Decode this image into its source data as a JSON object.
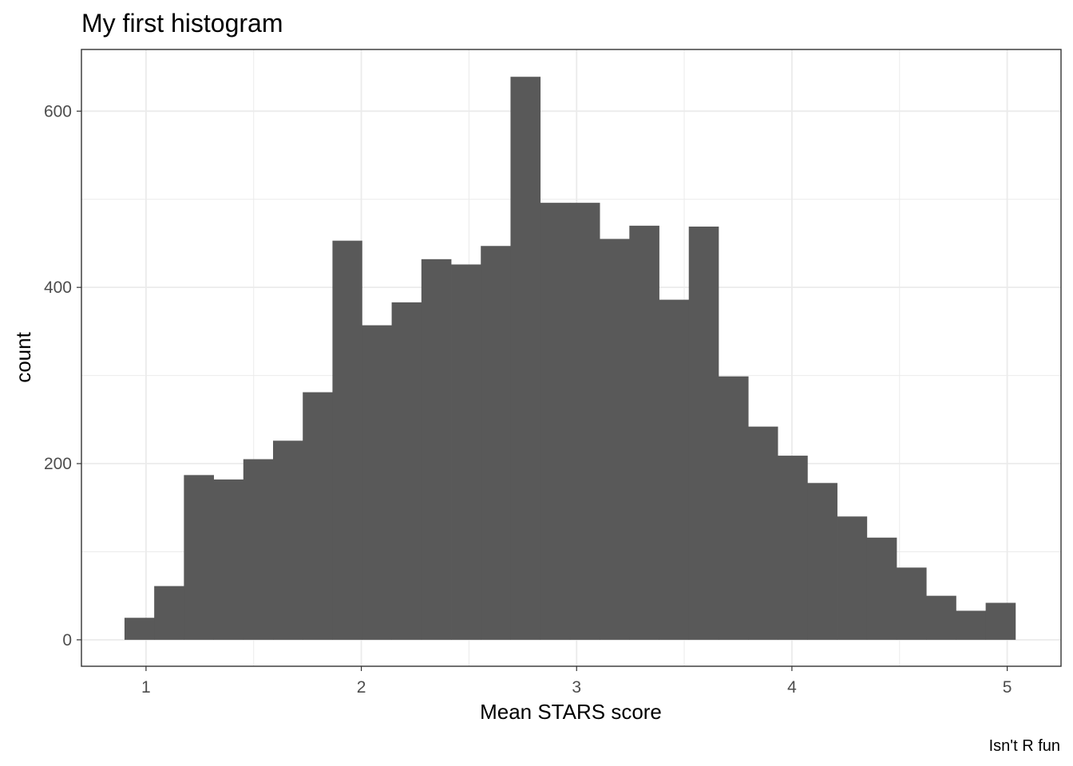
{
  "chart_data": {
    "type": "bar",
    "title": "My first histogram",
    "xlabel": "Mean STARS score",
    "ylabel": "count",
    "caption": "Isn't R fun",
    "bin_width": 0.1379,
    "bins": [
      {
        "x0": 0.9,
        "x1": 1.038,
        "count": 25
      },
      {
        "x0": 1.038,
        "x1": 1.176,
        "count": 61
      },
      {
        "x0": 1.176,
        "x1": 1.314,
        "count": 187
      },
      {
        "x0": 1.314,
        "x1": 1.452,
        "count": 182
      },
      {
        "x0": 1.452,
        "x1": 1.59,
        "count": 205
      },
      {
        "x0": 1.59,
        "x1": 1.728,
        "count": 226
      },
      {
        "x0": 1.728,
        "x1": 1.866,
        "count": 281
      },
      {
        "x0": 1.866,
        "x1": 2.003,
        "count": 453
      },
      {
        "x0": 2.003,
        "x1": 2.141,
        "count": 357
      },
      {
        "x0": 2.141,
        "x1": 2.279,
        "count": 383
      },
      {
        "x0": 2.279,
        "x1": 2.417,
        "count": 432
      },
      {
        "x0": 2.417,
        "x1": 2.555,
        "count": 426
      },
      {
        "x0": 2.555,
        "x1": 2.693,
        "count": 447
      },
      {
        "x0": 2.693,
        "x1": 2.831,
        "count": 639
      },
      {
        "x0": 2.831,
        "x1": 2.969,
        "count": 496
      },
      {
        "x0": 2.969,
        "x1": 3.107,
        "count": 496
      },
      {
        "x0": 3.107,
        "x1": 3.245,
        "count": 455
      },
      {
        "x0": 3.245,
        "x1": 3.383,
        "count": 470
      },
      {
        "x0": 3.383,
        "x1": 3.521,
        "count": 386
      },
      {
        "x0": 3.521,
        "x1": 3.659,
        "count": 469
      },
      {
        "x0": 3.659,
        "x1": 3.797,
        "count": 299
      },
      {
        "x0": 3.797,
        "x1": 3.934,
        "count": 242
      },
      {
        "x0": 3.934,
        "x1": 4.072,
        "count": 209
      },
      {
        "x0": 4.072,
        "x1": 4.21,
        "count": 178
      },
      {
        "x0": 4.21,
        "x1": 4.348,
        "count": 140
      },
      {
        "x0": 4.348,
        "x1": 4.486,
        "count": 116
      },
      {
        "x0": 4.486,
        "x1": 4.624,
        "count": 82
      },
      {
        "x0": 4.624,
        "x1": 4.762,
        "count": 50
      },
      {
        "x0": 4.762,
        "x1": 4.9,
        "count": 33
      },
      {
        "x0": 4.9,
        "x1": 5.038,
        "count": 42
      }
    ],
    "xlim": [
      0.7,
      5.25
    ],
    "ylim": [
      -30,
      670
    ],
    "x_ticks": [
      1,
      2,
      3,
      4,
      5
    ],
    "x_tick_labels": [
      "1",
      "2",
      "3",
      "4",
      "5"
    ],
    "y_ticks": [
      0,
      200,
      400,
      600
    ],
    "y_tick_labels": [
      "0",
      "200",
      "400",
      "600"
    ],
    "grid": true,
    "theme": "bw",
    "bar_color": "#595959",
    "grid_color": "#ebebeb",
    "panel_border_color": "#333333"
  }
}
